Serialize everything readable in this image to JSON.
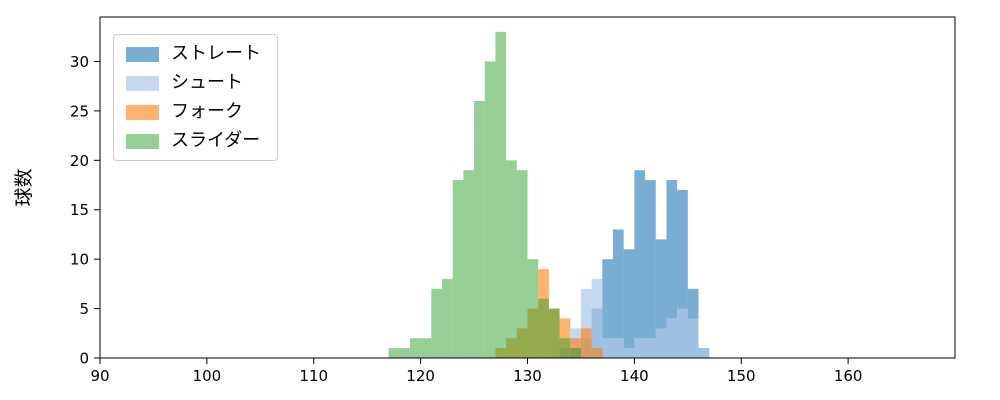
{
  "chart_data": {
    "type": "histogram",
    "title": "",
    "xlabel": "",
    "ylabel": "球数",
    "xlim": [
      90,
      170
    ],
    "ylim": [
      0,
      34.5
    ],
    "xticks": [
      90,
      100,
      110,
      120,
      130,
      140,
      150,
      160
    ],
    "yticks": [
      0,
      5,
      10,
      15,
      20,
      25,
      30
    ],
    "bin_width": 1,
    "grid": false,
    "legend_position": "upper-left",
    "series": [
      {
        "id": "straight",
        "name": "ストレート",
        "color": "rgba(31,119,180,0.6)",
        "start": 134,
        "values": [
          1,
          2,
          5,
          10,
          13,
          11,
          19,
          18,
          12,
          18,
          17,
          7,
          1
        ]
      },
      {
        "id": "shuuto",
        "name": "シュート",
        "color": "rgba(174,199,232,0.7)",
        "start": 133,
        "values": [
          1,
          3,
          7,
          8,
          2,
          2,
          1,
          2,
          2,
          3,
          4,
          5,
          4,
          1
        ]
      },
      {
        "id": "fork",
        "name": "フォーク",
        "color": "rgba(255,127,14,0.6)",
        "start": 127,
        "values": [
          1,
          2,
          3,
          5,
          9,
          5,
          4,
          2,
          3,
          1
        ]
      },
      {
        "id": "slider",
        "name": "スライダー",
        "color": "rgba(44,160,44,0.5)",
        "start": 117,
        "values": [
          1,
          1,
          2,
          2,
          7,
          8,
          18,
          19,
          26,
          30,
          33,
          20,
          19,
          10,
          6,
          5,
          2,
          1
        ]
      }
    ]
  }
}
